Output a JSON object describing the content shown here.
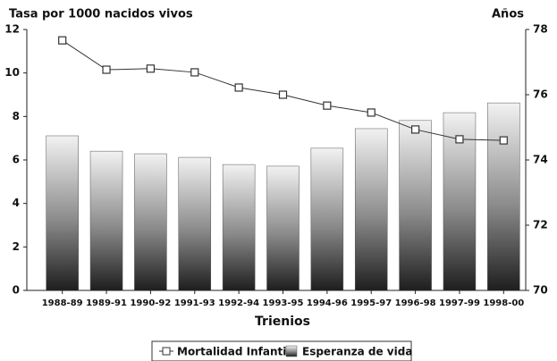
{
  "chart_data": {
    "type": "bar-line",
    "y_label": "Tasa por 1000 nacidos vivos",
    "y2_label": "Años",
    "x_label": "Trienios",
    "categories": [
      "1988-89",
      "1989-91",
      "1990-92",
      "1991-93",
      "1992-94",
      "1993-95",
      "1994-96",
      "1995-97",
      "1996-98",
      "1997-99",
      "1998-00"
    ],
    "series": [
      {
        "name": "Mortalidad Infantil",
        "type": "line",
        "color": "#333333",
        "axis": "y",
        "values": [
          11.5,
          10.15,
          10.2,
          10.03,
          9.33,
          9.0,
          8.5,
          8.18,
          7.4,
          6.95,
          6.9
        ]
      },
      {
        "name": "Esperanza de vida",
        "type": "bar",
        "color": "#222222",
        "axis": "y2",
        "values": [
          74.74,
          74.27,
          74.19,
          74.08,
          73.86,
          73.81,
          74.36,
          74.96,
          75.21,
          75.45,
          75.75
        ]
      }
    ],
    "ylim": [
      0,
      12
    ],
    "yticks": [
      0,
      2,
      4,
      6,
      8,
      10,
      12
    ],
    "y2lim": [
      70,
      78
    ],
    "y2ticks": [
      70,
      72,
      74,
      76,
      78
    ]
  }
}
